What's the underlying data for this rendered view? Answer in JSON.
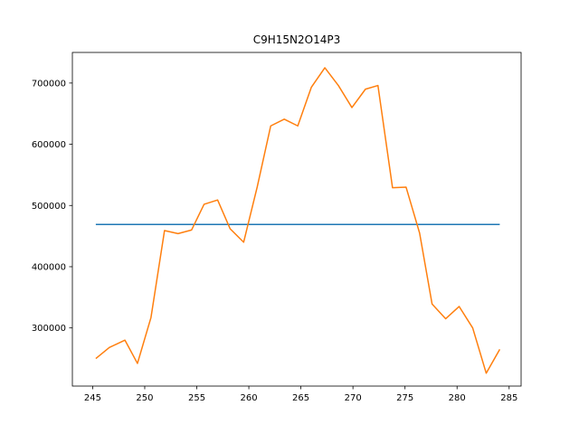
{
  "chart_data": {
    "type": "line",
    "title": "C9H15N2O14P3",
    "xlabel": "",
    "ylabel": "",
    "xlim": [
      243.05,
      286.15
    ],
    "ylim": [
      205000,
      750000
    ],
    "x_ticks": [
      245,
      250,
      255,
      260,
      265,
      270,
      275,
      280,
      285
    ],
    "y_ticks": [
      300000,
      400000,
      500000,
      600000,
      700000
    ],
    "x_tick_labels": [
      "245",
      "250",
      "255",
      "260",
      "265",
      "270",
      "275",
      "280",
      "285"
    ],
    "y_tick_labels": [
      "300000",
      "400000",
      "500000",
      "600000",
      "700000"
    ],
    "grid": false,
    "series": [
      {
        "color": "#1f77b4",
        "x": [
          245.3,
          284.1
        ],
        "y": [
          469000,
          469000
        ]
      },
      {
        "color": "#ff7f0e",
        "x": [
          245.3,
          246.6,
          248.1,
          249.3,
          250.6,
          251.9,
          253.2,
          254.5,
          255.7,
          257.0,
          258.2,
          259.5,
          260.8,
          262.1,
          263.4,
          264.7,
          266.0,
          267.3,
          268.6,
          269.9,
          271.2,
          272.4,
          273.8,
          275.1,
          276.4,
          277.6,
          278.9,
          280.2,
          281.5,
          282.8,
          284.1
        ],
        "y": [
          250000,
          268000,
          280000,
          242000,
          317000,
          459000,
          454000,
          460000,
          502000,
          509000,
          462000,
          440000,
          530000,
          630000,
          641000,
          630000,
          693000,
          725000,
          696000,
          660000,
          690000,
          696000,
          529000,
          530000,
          455000,
          339000,
          315000,
          335000,
          300000,
          226000,
          265000
        ]
      }
    ]
  }
}
